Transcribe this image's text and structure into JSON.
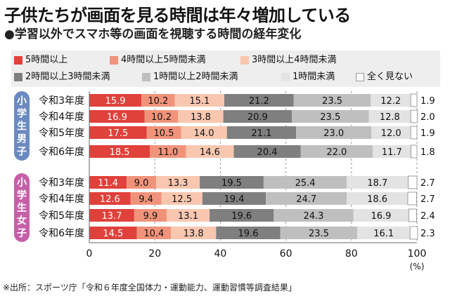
{
  "title": "子供たちが画面を見る時間は年々増加している",
  "subtitle": "●学習以外でスマホ等の画面を視聴する時間の経年変化",
  "footnote": "※出所：スポーツ庁「令和６年度全国体力・運動能力、運動習慣等調査結果」",
  "chart_data": {
    "type": "bar",
    "orientation": "horizontal",
    "stacked": true,
    "xlim": [
      0,
      100
    ],
    "x_ticks": [
      0,
      20,
      40,
      60,
      80,
      100
    ],
    "x_tick_labels": [
      "0",
      "20",
      "40",
      "60",
      "80",
      "100"
    ],
    "x_unit": "(%)",
    "grid": "vertical dashed",
    "legend_position": "top",
    "series": [
      {
        "name": "5時間以上",
        "color": "#e0413b"
      },
      {
        "name": "4時間以上5時間未満",
        "color": "#f1937a"
      },
      {
        "name": "3時間以上4時間未満",
        "color": "#f9c7b0"
      },
      {
        "name": "2時間以上3時間未満",
        "color": "#7f7f7f"
      },
      {
        "name": "1時間以上2時間未満",
        "color": "#bfbfbf"
      },
      {
        "name": "1時間未満",
        "color": "#e3e3e3"
      },
      {
        "name": "全く見ない",
        "color": "#ffffff"
      }
    ],
    "groups": [
      {
        "label": "小学生男子",
        "color": "#6b8ac2",
        "rows": [
          {
            "label": "令和3年度",
            "values": [
              15.9,
              10.2,
              15.1,
              21.2,
              23.5,
              12.2,
              1.9
            ]
          },
          {
            "label": "令和4年度",
            "values": [
              16.9,
              10.2,
              13.8,
              20.9,
              23.5,
              12.8,
              2.0
            ]
          },
          {
            "label": "令和5年度",
            "values": [
              17.5,
              10.5,
              14.0,
              21.1,
              23.0,
              12.0,
              1.9
            ]
          },
          {
            "label": "令和6年度",
            "values": [
              18.5,
              11.0,
              14.6,
              20.4,
              22.0,
              11.7,
              1.8
            ]
          }
        ]
      },
      {
        "label": "小学生女子",
        "color": "#c75fa8",
        "rows": [
          {
            "label": "令和3年度",
            "values": [
              11.4,
              9.0,
              13.3,
              19.5,
              25.4,
              18.7,
              2.7
            ]
          },
          {
            "label": "令和4年度",
            "values": [
              12.6,
              9.4,
              12.5,
              19.4,
              24.7,
              18.6,
              2.7
            ]
          },
          {
            "label": "令和5年度",
            "values": [
              13.7,
              9.9,
              13.1,
              19.6,
              24.3,
              16.9,
              2.4
            ]
          },
          {
            "label": "令和6年度",
            "values": [
              14.5,
              10.4,
              13.8,
              19.6,
              23.5,
              16.1,
              2.3
            ]
          }
        ]
      }
    ]
  }
}
